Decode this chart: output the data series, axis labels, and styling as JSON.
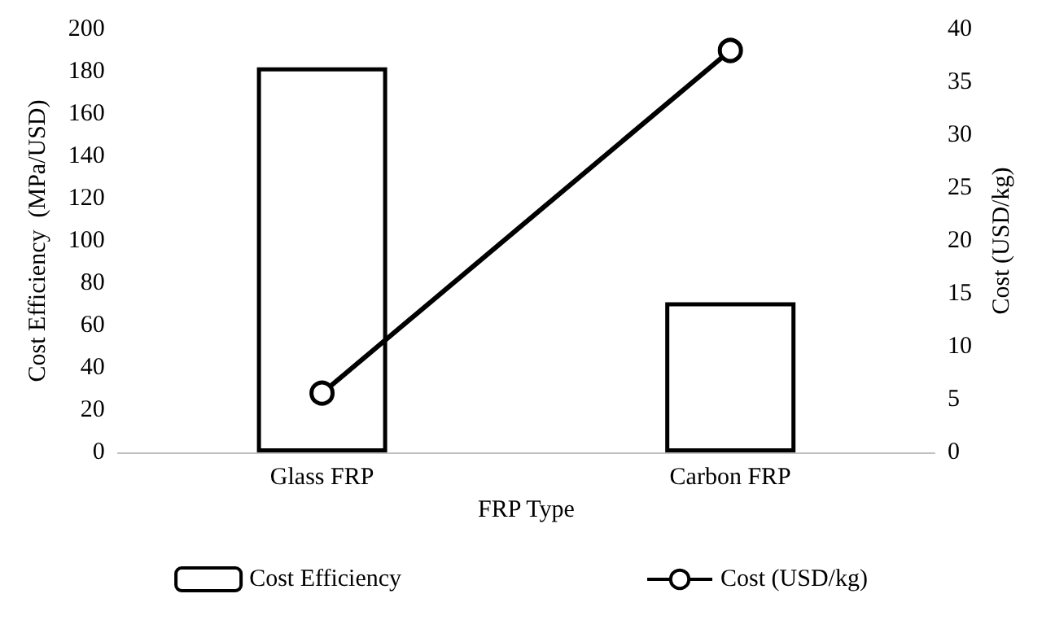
{
  "chart_data": {
    "type": "bar",
    "xlabel": "FRP Type",
    "ylabel": "Cost Efficiency  (MPa/USD)",
    "y2label": "Cost (USD/kg)",
    "categories": [
      "Glass FRP",
      "Carbon FRP"
    ],
    "series": [
      {
        "name": "Cost Efficiency",
        "color": "#ffffff",
        "values": [
          182,
          71
        ]
      },
      {
        "name": "Cost (USD/kg)",
        "type": "line",
        "axis": "y2",
        "color": "#000000",
        "marker": "circle",
        "values": [
          5.6,
          38
        ]
      }
    ],
    "ylim": [
      0,
      200
    ],
    "yticks": [
      0,
      20,
      40,
      60,
      80,
      100,
      120,
      140,
      160,
      180,
      200
    ],
    "y2lim": [
      0,
      40
    ],
    "y2ticks": [
      0,
      5,
      10,
      15,
      20,
      25,
      30,
      35,
      40
    ],
    "legend": "bottom",
    "grid": false
  }
}
